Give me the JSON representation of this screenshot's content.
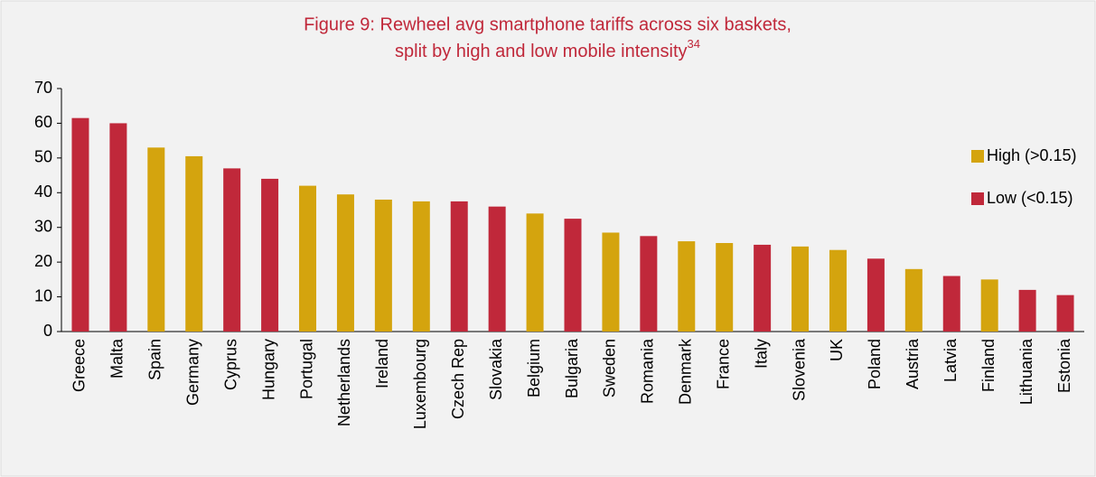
{
  "chart_data": {
    "type": "bar",
    "title": [
      "Figure 9: Rewheel avg smartphone tariffs across six baskets,",
      "split by high and low mobile intensity"
    ],
    "title_footnote": "34",
    "categories": [
      "Greece",
      "Malta",
      "Spain",
      "Germany",
      "Cyprus",
      "Hungary",
      "Portugal",
      "Netherlands",
      "Ireland",
      "Luxembourg",
      "Czech Rep",
      "Slovakia",
      "Belgium",
      "Bulgaria",
      "Sweden",
      "Romania",
      "Denmark",
      "France",
      "Italy",
      "Slovenia",
      "UK",
      "Poland",
      "Austria",
      "Latvia",
      "Finland",
      "Lithuania",
      "Estonia"
    ],
    "series": [
      {
        "name": "High (>0.15)",
        "color": "#d4a40e",
        "values": [
          null,
          null,
          53,
          50.5,
          null,
          null,
          42,
          39.5,
          38,
          37.5,
          null,
          null,
          34,
          null,
          28.5,
          null,
          26,
          25.5,
          null,
          24.5,
          23.5,
          null,
          18,
          null,
          15,
          null,
          null
        ]
      },
      {
        "name": "Low (<0.15)",
        "color": "#c0283a",
        "values": [
          61.5,
          60,
          null,
          null,
          47,
          44,
          null,
          null,
          null,
          null,
          37.5,
          36,
          null,
          32.5,
          null,
          27.5,
          null,
          null,
          25,
          null,
          null,
          21,
          null,
          16,
          null,
          12,
          10.5
        ]
      }
    ],
    "ylim": [
      0,
      70
    ],
    "yticks": [
      0,
      10,
      20,
      30,
      40,
      50,
      60,
      70
    ],
    "legend": "right"
  }
}
